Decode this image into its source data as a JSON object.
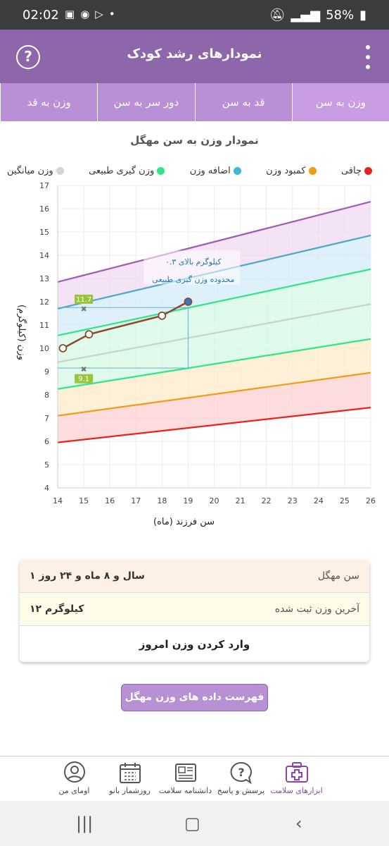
{
  "status_bar": {
    "time": "02:02",
    "battery": "58%"
  },
  "app_bar": {
    "title": "نمودارهای رشد کودک",
    "help_label": "?"
  },
  "tabs": [
    {
      "label": "وزن به سن",
      "active": true
    },
    {
      "label": "قد به سن",
      "active": false
    },
    {
      "label": "دور سر به سن",
      "active": false
    },
    {
      "label": "وزن به قد",
      "active": false
    }
  ],
  "legend": [
    {
      "label": "چاقی",
      "color": "#e8231d"
    },
    {
      "label": "کمبود وزن",
      "color": "#f49a14"
    },
    {
      "label": "اضافه وزن",
      "color": "#3cb9d6"
    },
    {
      "label": "وزن گیری طبیعی",
      "color": "#2ee58a"
    },
    {
      "label": "وزن میانگین",
      "color": "#d4d4d4"
    }
  ],
  "chart_data": {
    "type": "line",
    "title": "نمودار وزن به سن مهگل",
    "xlabel": "سن فرزند (ماه)",
    "ylabel": "وزن (کیلوگرم)",
    "xlim": [
      14,
      26
    ],
    "ylim": [
      4,
      17
    ],
    "x_ticks": [
      14,
      15,
      16,
      17,
      18,
      19,
      20,
      21,
      22,
      23,
      24,
      25,
      26
    ],
    "y_ticks": [
      4,
      5,
      6,
      7,
      8,
      9,
      10,
      11,
      12,
      13,
      14,
      15,
      16,
      17
    ],
    "grid": true,
    "bands": [
      {
        "name": "purple-line",
        "color": "#a05cb6",
        "x": [
          14,
          26
        ],
        "y": [
          12.85,
          16.3
        ]
      },
      {
        "name": "blue-line",
        "color": "#4aa6cf",
        "x": [
          14,
          26
        ],
        "y": [
          11.7,
          14.85
        ]
      },
      {
        "name": "green-top-line",
        "color": "#2ee58a",
        "x": [
          14,
          26
        ],
        "y": [
          10.55,
          13.4
        ]
      },
      {
        "name": "median-line",
        "color": "#c8d2cc",
        "x": [
          14,
          26
        ],
        "y": [
          9.4,
          11.9
        ]
      },
      {
        "name": "green-bottom-line",
        "color": "#2ee58a",
        "x": [
          14,
          26
        ],
        "y": [
          8.25,
          10.4
        ]
      },
      {
        "name": "orange-line",
        "color": "#f49a14",
        "x": [
          14,
          26
        ],
        "y": [
          7.1,
          8.95
        ]
      },
      {
        "name": "red-line",
        "color": "#e8231d",
        "x": [
          14,
          26
        ],
        "y": [
          5.95,
          7.45
        ]
      }
    ],
    "series": [
      {
        "x": [
          14.2,
          15.2,
          18,
          19
        ],
        "y": [
          10.0,
          10.6,
          11.4,
          12.0
        ]
      }
    ],
    "markers": [
      {
        "label": "11.7",
        "x": 15,
        "y": 11.7
      },
      {
        "label": "9.1",
        "x": 15,
        "y": 9.1
      }
    ],
    "range_box": {
      "x": [
        14,
        19
      ],
      "y": [
        9.15,
        11.75
      ]
    },
    "annotation": {
      "line1": "۰.۳ کیلوگرم بالای",
      "line2": "محدوده وزن گیری طبیعی",
      "x": 19,
      "y": 12.0
    }
  },
  "info": {
    "age_label": "سن مهگل",
    "age_value": "۱ سال و ۸ ماه و ۲۴ روز",
    "weight_label": "آخرین وزن ثبت شده",
    "weight_value": "۱۲ کیلوگرم",
    "enter_weight": "وارد کردن وزن امروز"
  },
  "list_button": "فهرست داده های وزن مهگل",
  "bottom_nav": [
    {
      "label": "ابزارهای سلامت",
      "icon": "medical-kit-icon",
      "active": true
    },
    {
      "label": "پرسش و پاسخ",
      "icon": "question-bubble-icon",
      "active": false
    },
    {
      "label": "دانشنامه سلامت",
      "icon": "newspaper-icon",
      "active": false
    },
    {
      "label": "روزشمار بانو",
      "icon": "calendar-icon",
      "active": false
    },
    {
      "label": "اومای من",
      "icon": "profile-icon",
      "active": false
    }
  ]
}
